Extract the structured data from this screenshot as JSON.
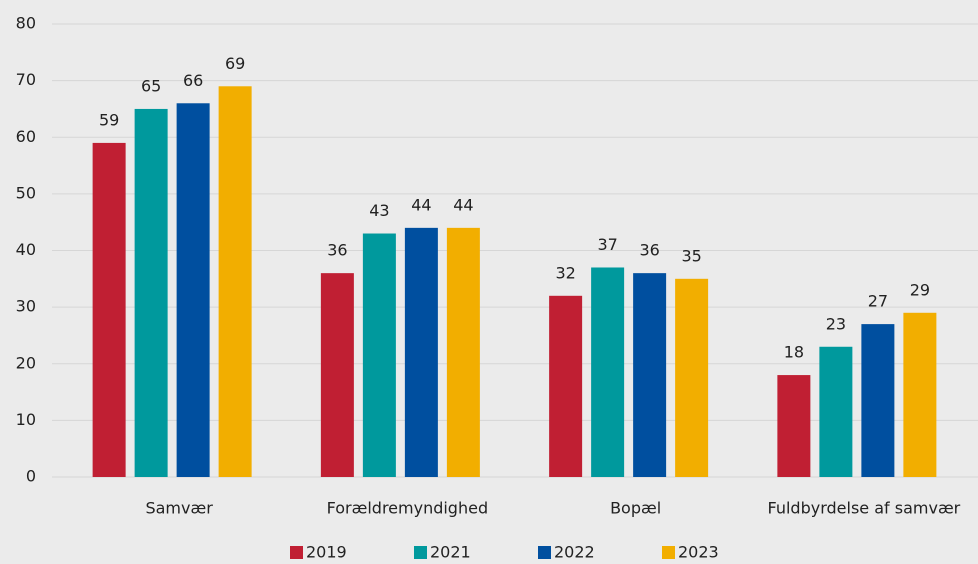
{
  "chart_data": {
    "type": "bar",
    "categories": [
      "Samvær",
      "Forældremyndighed",
      "Bopæl",
      "Fuldbyrdelse af samvær"
    ],
    "series": [
      {
        "name": "2019",
        "color": "#c01f33",
        "values": [
          59,
          36,
          32,
          18
        ]
      },
      {
        "name": "2021",
        "color": "#00999d",
        "values": [
          65,
          43,
          37,
          23
        ]
      },
      {
        "name": "2022",
        "color": "#004f9f",
        "values": [
          66,
          44,
          36,
          27
        ]
      },
      {
        "name": "2023",
        "color": "#f2ae00",
        "values": [
          69,
          44,
          35,
          29
        ]
      }
    ],
    "ylim": [
      0,
      80
    ],
    "yticks": [
      0,
      10,
      20,
      30,
      40,
      50,
      60,
      70,
      80
    ],
    "grid": true,
    "legend": "bottom"
  }
}
